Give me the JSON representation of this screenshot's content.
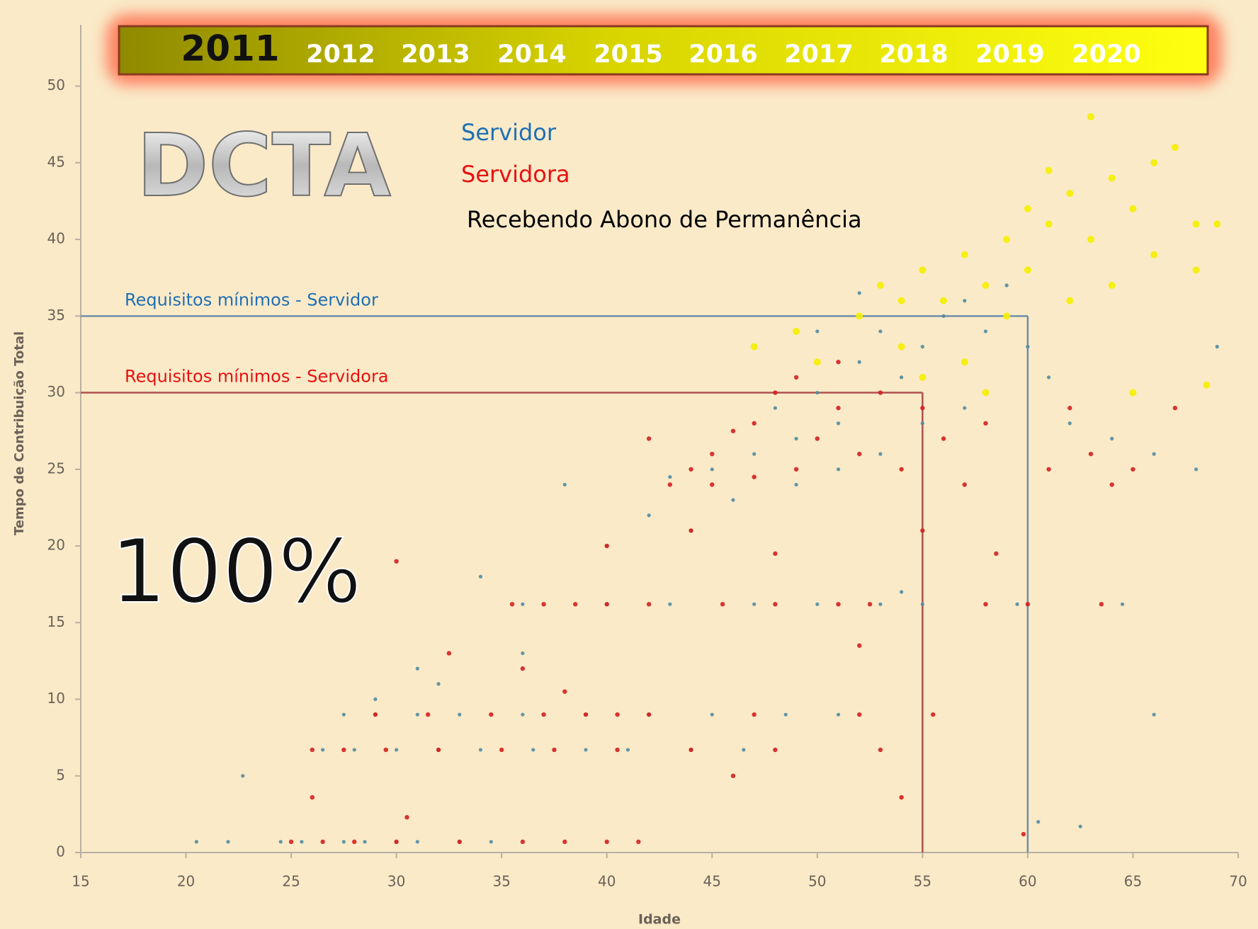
{
  "chart_data": {
    "type": "scatter",
    "years": [
      "2011",
      "2012",
      "2013",
      "2014",
      "2015",
      "2016",
      "2017",
      "2018",
      "2019",
      "2020"
    ],
    "active_year_index": 0,
    "watermark": "DCTA",
    "percent_label": "100%",
    "x_label": "Idade",
    "y_label": "Tempo de Contribuição Total",
    "xlim": [
      15,
      70
    ],
    "xticks": [
      15,
      20,
      25,
      30,
      35,
      40,
      45,
      50,
      55,
      60,
      65,
      70
    ],
    "ylim": [
      0,
      54
    ],
    "yticks": [
      0,
      5,
      10,
      15,
      20,
      25,
      30,
      35,
      40,
      45,
      50
    ],
    "reference_lines": [
      {
        "label": "Requisitos mínimos - Servidor",
        "y": 35,
        "x": 60,
        "color": "#6f8fa8",
        "label_color": "#1f6fb5"
      },
      {
        "label": "Requisitos mínimos - Servidora",
        "y": 30,
        "x": 55,
        "color": "#b05050",
        "label_color": "#e81010"
      }
    ],
    "series": [
      {
        "name": "Servidor",
        "color": "#4f8ca3",
        "label_color": "#1f6fb5",
        "radius": 2.6,
        "x": [
          20.5,
          22,
          24.5,
          25.5,
          27.5,
          28.5,
          30,
          31,
          33,
          34.5,
          26.5,
          28,
          30,
          32,
          34,
          36.5,
          39,
          41,
          44,
          46.5,
          27.5,
          29,
          31,
          33,
          36,
          39,
          42,
          45,
          48.5,
          51,
          36,
          40,
          43,
          47,
          50,
          53,
          55,
          59.5,
          64.5,
          22.7,
          29,
          31,
          32,
          34,
          36,
          38,
          40,
          42,
          44,
          43,
          45,
          47,
          48,
          49,
          50,
          51,
          52,
          53,
          54,
          55,
          56,
          57,
          58,
          59,
          60,
          61,
          62,
          64,
          66,
          68,
          69,
          57,
          55,
          53,
          51,
          49,
          46,
          52,
          50,
          60.5,
          62.5,
          66,
          54
        ],
        "values": [
          0.7,
          0.7,
          0.7,
          0.7,
          0.7,
          0.7,
          0.7,
          0.7,
          0.7,
          0.7,
          6.7,
          6.7,
          6.7,
          6.7,
          6.7,
          6.7,
          6.7,
          6.7,
          6.7,
          6.7,
          9,
          9,
          9,
          9,
          9,
          9,
          9,
          9,
          9,
          9,
          16.2,
          16.2,
          16.2,
          16.2,
          16.2,
          16.2,
          16.2,
          16.2,
          16.2,
          5,
          10,
          12,
          11,
          18,
          13,
          24,
          20,
          22,
          21,
          24.5,
          25,
          26,
          29,
          27,
          30,
          28,
          32,
          34,
          31,
          33,
          35,
          36,
          34,
          37,
          33,
          31,
          28,
          27,
          26,
          25,
          33,
          29,
          28,
          26,
          25,
          24,
          23,
          36.5,
          34,
          2,
          1.7,
          9,
          17
        ]
      },
      {
        "name": "Servidora",
        "color": "#d42020",
        "label_color": "#e81010",
        "radius": 3.2,
        "x": [
          25,
          26.5,
          28,
          30,
          33,
          36,
          38,
          40,
          41.5,
          26,
          27.5,
          29.5,
          32,
          35,
          37.5,
          40.5,
          44,
          48,
          53,
          29,
          31.5,
          34.5,
          37,
          39,
          40.5,
          42,
          47,
          52,
          55.5,
          35.5,
          37,
          38.5,
          40,
          42,
          45.5,
          48,
          51,
          52.5,
          58,
          60,
          63.5,
          30,
          30.5,
          26,
          32.5,
          36,
          38,
          40,
          44,
          46,
          48,
          52,
          54,
          55,
          58.5,
          59.8,
          42,
          43,
          44,
          45,
          46,
          47,
          48,
          49,
          50,
          51,
          52,
          53,
          54,
          55,
          56,
          57,
          58,
          61,
          62,
          63,
          64,
          65,
          67,
          47,
          49,
          51,
          45
        ],
        "values": [
          0.7,
          0.7,
          0.7,
          0.7,
          0.7,
          0.7,
          0.7,
          0.7,
          0.7,
          6.7,
          6.7,
          6.7,
          6.7,
          6.7,
          6.7,
          6.7,
          6.7,
          6.7,
          6.7,
          9,
          9,
          9,
          9,
          9,
          9,
          9,
          9,
          9,
          9,
          16.2,
          16.2,
          16.2,
          16.2,
          16.2,
          16.2,
          16.2,
          16.2,
          16.2,
          16.2,
          16.2,
          16.2,
          19,
          2.3,
          3.6,
          13,
          12,
          10.5,
          20,
          21,
          5,
          19.5,
          13.5,
          3.6,
          21,
          19.5,
          1.2,
          27,
          24,
          25,
          26,
          27.5,
          28,
          30,
          31,
          27,
          29,
          26,
          30,
          25,
          29,
          27,
          24,
          28,
          25,
          29,
          26,
          24,
          25,
          29,
          24.5,
          25,
          32,
          24
        ]
      },
      {
        "name": "Recebendo Abono de Permanência",
        "color": "#f4f000",
        "label_color": "#000000",
        "radius": 5,
        "x": [
          47,
          49,
          50,
          52,
          53,
          54,
          55,
          56,
          57,
          58,
          59,
          60,
          61,
          62,
          63,
          64,
          65,
          66,
          67,
          68,
          69,
          63,
          61,
          57,
          55,
          58,
          59,
          64,
          66,
          68,
          68.5,
          65,
          62,
          60,
          54
        ],
        "values": [
          33,
          34,
          32,
          35,
          37,
          36,
          38,
          36,
          39,
          37,
          40,
          38,
          41,
          43,
          40,
          44,
          42,
          45,
          46,
          41,
          41,
          48,
          44.5,
          32,
          31,
          30,
          35,
          37,
          39,
          38,
          30.5,
          30,
          36,
          42,
          33
        ]
      }
    ]
  }
}
